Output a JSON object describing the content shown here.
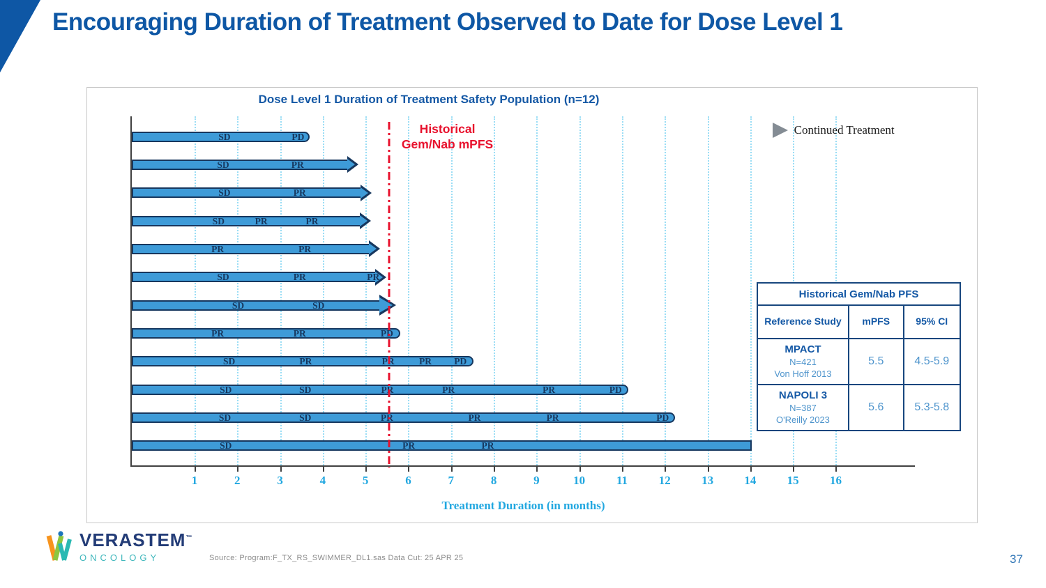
{
  "slide": {
    "title": "Encouraging Duration of Treatment Observed to Date for Dose Level 1",
    "page_number": "37",
    "source_note": "Source: Program:F_TX_RS_SWIMMER_DL1.sas  Data Cut: 25 APR 25",
    "accent_color": "#0E57A5"
  },
  "logo": {
    "brand": "VERASTEM",
    "trademark": "™",
    "division": "ONCOLOGY"
  },
  "chart_data": {
    "type": "bar",
    "variant": "swimmer-plot",
    "title": "Dose Level 1 Duration of Treatment Safety Population (n=12)",
    "xlabel": "Treatment Duration (in months)",
    "x_ticks": [
      1,
      2,
      3,
      4,
      5,
      6,
      7,
      8,
      9,
      10,
      11,
      12,
      13,
      14,
      15,
      16
    ],
    "x_axis_start": -0.468,
    "x_axis_end": 17.852,
    "grid": "vertical-dotted",
    "bar_fill": "#3E9BD8",
    "bar_border": "#17375E",
    "gridline_color": "#9ADDF5",
    "tick_label_color": "#21A7E0",
    "legend": {
      "position": "top-right",
      "marker": "gray-arrow",
      "label": "Continued Treatment"
    },
    "reference_line": {
      "x": 5.55,
      "style": "dash-dot",
      "color": "#E8112D",
      "label": "Historical\nGem/Nab mPFS"
    },
    "units": "months",
    "bars": [
      {
        "end": 3.62,
        "continued": false,
        "end_cap": "round",
        "labels": [
          {
            "text": "SD",
            "x": 1.7
          },
          {
            "text": "PD",
            "x": 3.42
          }
        ]
      },
      {
        "end": 4.83,
        "continued": true,
        "end_cap": "arrow",
        "labels": [
          {
            "text": "SD",
            "x": 1.67
          },
          {
            "text": "PR",
            "x": 3.41
          }
        ]
      },
      {
        "end": 5.15,
        "continued": true,
        "end_cap": "arrow",
        "labels": [
          {
            "text": "SD",
            "x": 1.7
          },
          {
            "text": "PR",
            "x": 3.46
          }
        ]
      },
      {
        "end": 5.13,
        "continued": true,
        "end_cap": "arrow",
        "labels": [
          {
            "text": "SD",
            "x": 1.56
          },
          {
            "text": "PR",
            "x": 2.56
          },
          {
            "text": "PR",
            "x": 3.75
          }
        ]
      },
      {
        "end": 5.34,
        "continued": true,
        "end_cap": "arrow",
        "labels": [
          {
            "text": "PR",
            "x": 1.54
          },
          {
            "text": "PR",
            "x": 3.58
          }
        ]
      },
      {
        "end": 5.48,
        "continued": true,
        "end_cap": "arrow",
        "labels": [
          {
            "text": "SD",
            "x": 1.67
          },
          {
            "text": "PR",
            "x": 3.46
          },
          {
            "text": "PR",
            "x": 5.18
          }
        ]
      },
      {
        "end": 5.72,
        "continued": true,
        "end_cap": "arrow",
        "arrow_size": "large",
        "labels": [
          {
            "text": "SD",
            "x": 2.02
          },
          {
            "text": "SD",
            "x": 3.9
          }
        ]
      },
      {
        "end": 5.75,
        "continued": false,
        "end_cap": "round",
        "labels": [
          {
            "text": "PR",
            "x": 1.54
          },
          {
            "text": "PR",
            "x": 3.46
          },
          {
            "text": "PD",
            "x": 5.5
          }
        ]
      },
      {
        "end": 7.46,
        "continued": false,
        "end_cap": "round",
        "labels": [
          {
            "text": "SD",
            "x": 1.81
          },
          {
            "text": "PR",
            "x": 3.6
          },
          {
            "text": "PR",
            "x": 5.53
          },
          {
            "text": "PR",
            "x": 6.4
          },
          {
            "text": "PD",
            "x": 7.22
          }
        ]
      },
      {
        "end": 11.08,
        "continued": false,
        "end_cap": "round",
        "labels": [
          {
            "text": "SD",
            "x": 1.73
          },
          {
            "text": "SD",
            "x": 3.59
          },
          {
            "text": "PR",
            "x": 5.51
          },
          {
            "text": "PR",
            "x": 6.94
          },
          {
            "text": "PR",
            "x": 9.29
          },
          {
            "text": "PD",
            "x": 10.85
          }
        ]
      },
      {
        "end": 12.18,
        "continued": false,
        "end_cap": "round",
        "labels": [
          {
            "text": "SD",
            "x": 1.71
          },
          {
            "text": "SD",
            "x": 3.59
          },
          {
            "text": "PR",
            "x": 5.5
          },
          {
            "text": "PR",
            "x": 7.55
          },
          {
            "text": "PR",
            "x": 9.38
          },
          {
            "text": "PD",
            "x": 11.95
          }
        ]
      },
      {
        "end": 13.97,
        "continued": false,
        "end_cap": "flat",
        "labels": [
          {
            "text": "SD",
            "x": 1.73
          },
          {
            "text": "PR",
            "x": 6.01
          },
          {
            "text": "PR",
            "x": 7.86
          }
        ]
      }
    ]
  },
  "table": {
    "title": "Historical Gem/Nab PFS",
    "columns": [
      "Reference Study",
      "mPFS",
      "95% CI"
    ],
    "rows": [
      {
        "study": "MPACT",
        "n": "N=421",
        "ref": "Von Hoff 2013",
        "mpfs": "5.5",
        "ci": "4.5-5.9"
      },
      {
        "study": "NAPOLI 3",
        "n": "N=387",
        "ref": "O'Reilly 2023",
        "mpfs": "5.6",
        "ci": "5.3-5.8"
      }
    ]
  }
}
